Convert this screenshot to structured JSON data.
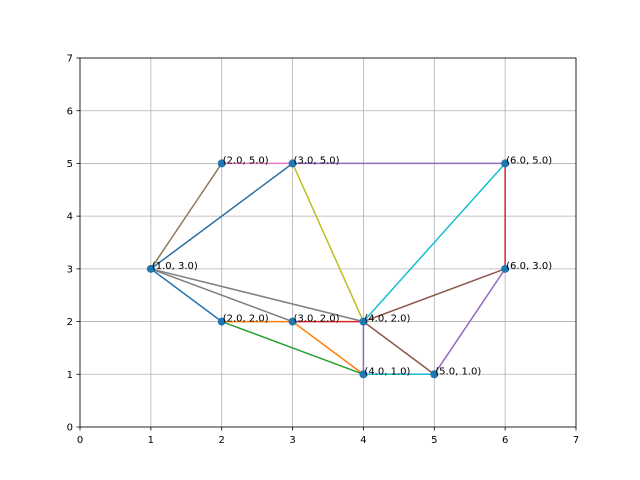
{
  "chart_data": {
    "type": "scatter",
    "title": "",
    "xlabel": "",
    "ylabel": "",
    "xlim": [
      0,
      7
    ],
    "ylim": [
      0,
      7
    ],
    "xticks": [
      "0",
      "1",
      "2",
      "3",
      "4",
      "5",
      "6",
      "7"
    ],
    "yticks": [
      "0",
      "1",
      "2",
      "3",
      "4",
      "5",
      "6",
      "7"
    ],
    "grid": true,
    "legend": "none",
    "points": [
      {
        "x": 1,
        "y": 3,
        "label": "(1.0, 3.0)"
      },
      {
        "x": 2,
        "y": 5,
        "label": "(2.0, 5.0)"
      },
      {
        "x": 3,
        "y": 5,
        "label": "(3.0, 5.0)"
      },
      {
        "x": 6,
        "y": 5,
        "label": "(6.0, 5.0)"
      },
      {
        "x": 6,
        "y": 3,
        "label": "(6.0, 3.0)"
      },
      {
        "x": 2,
        "y": 2,
        "label": "(2.0, 2.0)"
      },
      {
        "x": 3,
        "y": 2,
        "label": "(3.0, 2.0)"
      },
      {
        "x": 4,
        "y": 2,
        "label": "(4.0, 2.0)"
      },
      {
        "x": 4,
        "y": 1,
        "label": "(4.0, 1.0)"
      },
      {
        "x": 5,
        "y": 1,
        "label": "(5.0, 1.0)"
      }
    ],
    "point_color": "#1f77b4",
    "edges": [
      {
        "from": [
          1,
          3
        ],
        "to": [
          2,
          2
        ],
        "color": "#1f77b4"
      },
      {
        "from": [
          2,
          2
        ],
        "to": [
          3,
          2
        ],
        "color": "#ff7f0e"
      },
      {
        "from": [
          3,
          2
        ],
        "to": [
          4,
          1
        ],
        "color": "#ff7f0e"
      },
      {
        "from": [
          2,
          2
        ],
        "to": [
          4,
          1
        ],
        "color": "#2ca02c"
      },
      {
        "from": [
          3,
          2
        ],
        "to": [
          4,
          2
        ],
        "color": "#d62728"
      },
      {
        "from": [
          3,
          5
        ],
        "to": [
          6,
          5
        ],
        "color": "#9467bd"
      },
      {
        "from": [
          4,
          2
        ],
        "to": [
          4,
          1
        ],
        "color": "#9467bd"
      },
      {
        "from": [
          5,
          1
        ],
        "to": [
          6,
          3
        ],
        "color": "#9467bd"
      },
      {
        "from": [
          4,
          2
        ],
        "to": [
          6,
          3
        ],
        "color": "#8c564b"
      },
      {
        "from": [
          4,
          2
        ],
        "to": [
          5,
          1
        ],
        "color": "#8c564b"
      },
      {
        "from": [
          1,
          3
        ],
        "to": [
          4,
          2
        ],
        "color": "#7f7f7f"
      },
      {
        "from": [
          1,
          3
        ],
        "to": [
          3,
          2
        ],
        "color": "#7f7f7f"
      },
      {
        "from": [
          1,
          3
        ],
        "to": [
          2,
          5
        ],
        "color": "#8c7b60"
      },
      {
        "from": [
          1,
          3
        ],
        "to": [
          3,
          5
        ],
        "color": "#2a6f9e"
      },
      {
        "from": [
          2,
          5
        ],
        "to": [
          3,
          5
        ],
        "color": "#e377c2"
      },
      {
        "from": [
          3,
          5
        ],
        "to": [
          4,
          2
        ],
        "color": "#bcbd22"
      },
      {
        "from": [
          4,
          2
        ],
        "to": [
          6,
          5
        ],
        "color": "#17becf"
      },
      {
        "from": [
          4,
          1
        ],
        "to": [
          5,
          1
        ],
        "color": "#17becf"
      },
      {
        "from": [
          6,
          5
        ],
        "to": [
          6,
          3
        ],
        "color": "#d62728"
      }
    ]
  }
}
